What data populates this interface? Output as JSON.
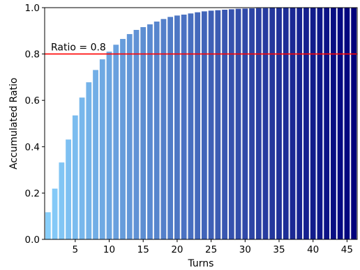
{
  "chart_data": {
    "type": "bar",
    "title": "",
    "xlabel": "Turns",
    "ylabel": "Accumulated Ratio",
    "xlim": [
      0.5,
      46.5
    ],
    "ylim": [
      0,
      1.0
    ],
    "x_ticks": [
      5,
      10,
      15,
      20,
      25,
      30,
      35,
      40,
      45
    ],
    "y_ticks": [
      0.0,
      0.2,
      0.4,
      0.6,
      0.8,
      1.0
    ],
    "y_tick_labels": [
      "0.0",
      "0.2",
      "0.4",
      "0.6",
      "0.8",
      "1.0"
    ],
    "grid": false,
    "bar_color_start": "#87cefa",
    "bar_color_end": "#00007b",
    "x": [
      1,
      2,
      3,
      4,
      5,
      6,
      7,
      8,
      9,
      10,
      11,
      12,
      13,
      14,
      15,
      16,
      17,
      18,
      19,
      20,
      21,
      22,
      23,
      24,
      25,
      26,
      27,
      28,
      29,
      30,
      31,
      32,
      33,
      34,
      35,
      36,
      37,
      38,
      39,
      40,
      41,
      42,
      43,
      44,
      45,
      46
    ],
    "values": [
      0.117,
      0.219,
      0.332,
      0.431,
      0.535,
      0.612,
      0.678,
      0.731,
      0.777,
      0.81,
      0.84,
      0.865,
      0.886,
      0.904,
      0.916,
      0.928,
      0.94,
      0.951,
      0.96,
      0.966,
      0.97,
      0.975,
      0.98,
      0.984,
      0.987,
      0.989,
      0.991,
      0.993,
      0.995,
      0.996,
      0.997,
      0.998,
      0.998,
      0.999,
      0.999,
      0.999,
      1.0,
      1.0,
      1.0,
      1.0,
      1.0,
      1.0,
      1.0,
      1.0,
      1.0,
      1.0
    ],
    "reference_line": {
      "y": 0.8,
      "color": "#ff0000",
      "label": "Ratio = 0.8"
    }
  }
}
